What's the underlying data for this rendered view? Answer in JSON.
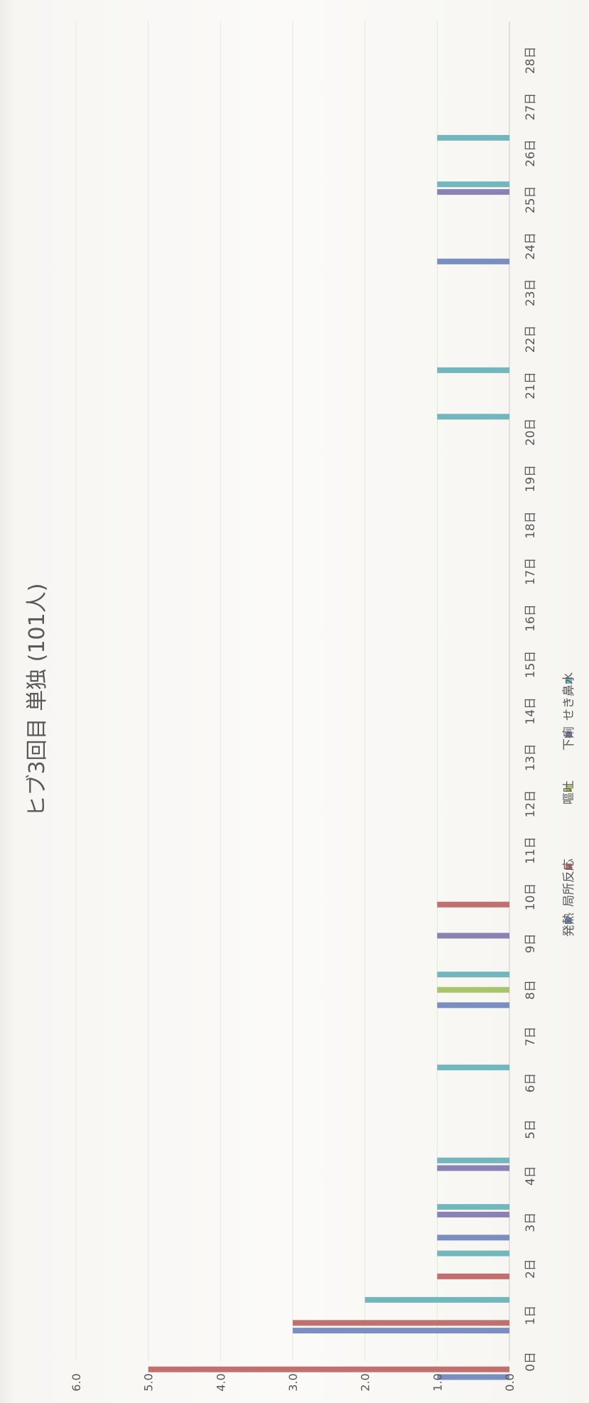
{
  "chart_data": {
    "type": "bar",
    "title": "ヒブ3回目 単独 (101人)",
    "xlabel": "",
    "ylabel": "",
    "ylim": [
      0,
      6
    ],
    "yticks": [
      "0.0",
      "1.0",
      "2.0",
      "3.0",
      "4.0",
      "5.0",
      "6.0"
    ],
    "grid": true,
    "legend_position": "bottom",
    "orientation": "rotated-90",
    "categories": [
      "0日",
      "1日",
      "2日",
      "3日",
      "4日",
      "5日",
      "6日",
      "7日",
      "8日",
      "9日",
      "10日",
      "11日",
      "12日",
      "13日",
      "14日",
      "15日",
      "16日",
      "17日",
      "18日",
      "19日",
      "20日",
      "21日",
      "22日",
      "23日",
      "24日",
      "25日",
      "26日",
      "27日",
      "28日"
    ],
    "series": [
      {
        "name": "発熱",
        "color": "#7a8fbf",
        "values": [
          1,
          3,
          0,
          1,
          0,
          0,
          0,
          0,
          1,
          0,
          0,
          0,
          0,
          0,
          0,
          0,
          0,
          0,
          0,
          0,
          0,
          0,
          0,
          0,
          1,
          0,
          0,
          0,
          0
        ]
      },
      {
        "name": "局所反応",
        "color": "#c0706e",
        "values": [
          5,
          3,
          1,
          0,
          0,
          0,
          0,
          0,
          0,
          0,
          1,
          0,
          0,
          0,
          0,
          0,
          0,
          0,
          0,
          0,
          0,
          0,
          0,
          0,
          0,
          0,
          0,
          0,
          0
        ]
      },
      {
        "name": "嘔吐",
        "color": "#a8c46c",
        "values": [
          0,
          0,
          0,
          0,
          0,
          0,
          0,
          0,
          1,
          0,
          0,
          0,
          0,
          0,
          0,
          0,
          0,
          0,
          0,
          0,
          0,
          0,
          0,
          0,
          0,
          0,
          0,
          0,
          0
        ]
      },
      {
        "name": "下痢",
        "color": "#8a82b4",
        "values": [
          0,
          0,
          0,
          1,
          1,
          0,
          0,
          0,
          0,
          1,
          0,
          0,
          0,
          0,
          0,
          0,
          0,
          0,
          0,
          0,
          0,
          0,
          0,
          0,
          0,
          1,
          0,
          0,
          0
        ]
      },
      {
        "name": "せき鼻水",
        "color": "#72b7bd",
        "values": [
          0,
          2,
          1,
          1,
          1,
          0,
          1,
          0,
          1,
          0,
          0,
          0,
          0,
          0,
          0,
          0,
          0,
          0,
          0,
          0,
          1,
          1,
          0,
          0,
          0,
          1,
          1,
          0,
          0
        ]
      }
    ]
  }
}
